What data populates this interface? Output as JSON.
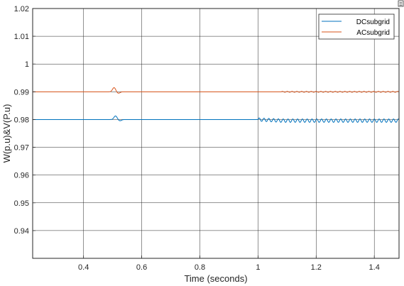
{
  "chart_data": {
    "type": "line",
    "xlabel": "Time (seconds)",
    "ylabel": "W(p.u)&V(P.u)",
    "xlim": [
      0.225,
      1.485
    ],
    "ylim": [
      0.93,
      1.02
    ],
    "xticks": [
      0.4,
      0.6,
      0.8,
      1,
      1.2,
      1.4
    ],
    "xtick_labels": [
      "0.4",
      "0.6",
      "0.8",
      "1",
      "1.2",
      "1.4"
    ],
    "yticks": [
      0.94,
      0.95,
      0.96,
      0.97,
      0.98,
      0.99,
      1,
      1.01,
      1.02
    ],
    "ytick_labels": [
      "0.94",
      "0.95",
      "0.96",
      "0.97",
      "0.98",
      "0.99",
      "1",
      "1.01",
      "1.02"
    ],
    "grid": true,
    "legend_position": "top-right",
    "series": [
      {
        "name": "DCsubgrid",
        "color": "#0072BD",
        "baseline": 0.98,
        "disturbance": {
          "t": 0.51,
          "peak": 0.9813,
          "width": 0.015
        },
        "oscillation": {
          "start": 1.0,
          "amplitude": 0.0006,
          "period": 0.0165,
          "offset": -0.0004
        }
      },
      {
        "name": "ACsubgrid",
        "color": "#D95319",
        "baseline": 0.99,
        "disturbance": {
          "t": 0.505,
          "peak": 0.9915,
          "width": 0.015
        },
        "oscillation": {
          "start": 1.08,
          "amplitude": 0.00015,
          "period": 0.0165,
          "offset": 0
        }
      }
    ]
  }
}
